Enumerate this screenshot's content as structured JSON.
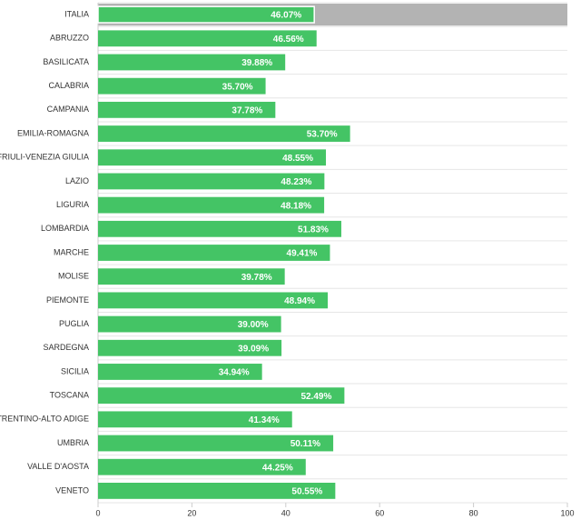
{
  "chart_data": {
    "type": "bar",
    "orientation": "horizontal",
    "categories": [
      "ITALIA",
      "ABRUZZO",
      "BASILICATA",
      "CALABRIA",
      "CAMPANIA",
      "EMILIA-ROMAGNA",
      "FRIULI-VENEZIA GIULIA",
      "LAZIO",
      "LIGURIA",
      "LOMBARDIA",
      "MARCHE",
      "MOLISE",
      "PIEMONTE",
      "PUGLIA",
      "SARDEGNA",
      "SICILIA",
      "TOSCANA",
      "TRENTINO-ALTO ADIGE",
      "UMBRIA",
      "VALLE D'AOSTA",
      "VENETO"
    ],
    "values": [
      46.07,
      46.56,
      39.88,
      35.7,
      37.78,
      53.7,
      48.55,
      48.23,
      48.18,
      51.83,
      49.41,
      39.78,
      48.94,
      39.0,
      39.09,
      34.94,
      52.49,
      41.34,
      50.11,
      44.25,
      50.55
    ],
    "value_labels": [
      "46.07%",
      "46.56%",
      "39.88%",
      "35.70%",
      "37.78%",
      "53.70%",
      "48.55%",
      "48.23%",
      "48.18%",
      "51.83%",
      "49.41%",
      "39.78%",
      "48.94%",
      "39.00%",
      "39.09%",
      "34.94%",
      "52.49%",
      "41.34%",
      "50.11%",
      "44.25%",
      "50.55%"
    ],
    "color": "#44c465",
    "xlim": [
      0,
      100
    ],
    "xticks": [
      0,
      20,
      40,
      60,
      80,
      100
    ]
  }
}
